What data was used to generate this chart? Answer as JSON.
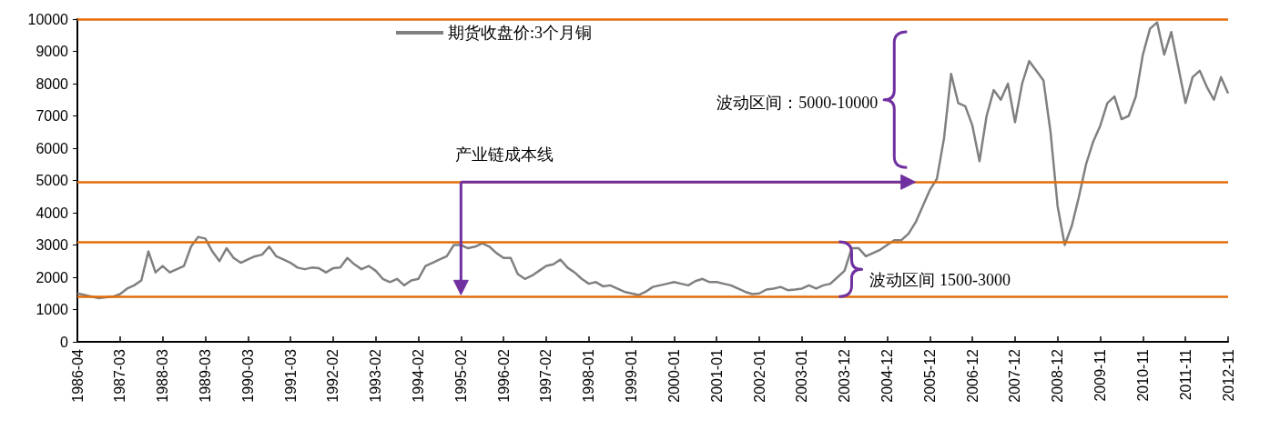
{
  "chart_data": {
    "type": "line",
    "categories": [
      "1986-04",
      null,
      null,
      null,
      null,
      null,
      "1987-03",
      null,
      null,
      null,
      null,
      null,
      "1988-03",
      null,
      null,
      null,
      null,
      null,
      "1989-03",
      null,
      null,
      null,
      null,
      null,
      "1990-03",
      null,
      null,
      null,
      null,
      null,
      "1991-03",
      null,
      null,
      null,
      null,
      null,
      "1992-02",
      null,
      null,
      null,
      null,
      null,
      "1993-02",
      null,
      null,
      null,
      null,
      null,
      "1994-02",
      null,
      null,
      null,
      null,
      null,
      "1995-02",
      null,
      null,
      null,
      null,
      null,
      "1996-02",
      null,
      null,
      null,
      null,
      null,
      "1997-02",
      null,
      null,
      null,
      null,
      null,
      "1998-01",
      null,
      null,
      null,
      null,
      null,
      "1999-01",
      null,
      null,
      null,
      null,
      null,
      "2000-01",
      null,
      null,
      null,
      null,
      null,
      "2001-01",
      null,
      null,
      null,
      null,
      null,
      "2002-01",
      null,
      null,
      null,
      null,
      null,
      "2003-01",
      null,
      null,
      null,
      null,
      null,
      "2003-12",
      null,
      null,
      null,
      null,
      null,
      "2004-12",
      null,
      null,
      null,
      null,
      null,
      "2005-12",
      null,
      null,
      null,
      null,
      null,
      "2006-12",
      null,
      null,
      null,
      null,
      null,
      "2007-12",
      null,
      null,
      null,
      null,
      null,
      "2008-12",
      null,
      null,
      null,
      null,
      null,
      "2009-11",
      null,
      null,
      null,
      null,
      null,
      "2010-11",
      null,
      null,
      null,
      null,
      null,
      "2011-11",
      null,
      null,
      null,
      null,
      null,
      "2012-11"
    ],
    "series": [
      {
        "name": "期货收盘价:3个月铜",
        "color": "#808080",
        "values": [
          1500,
          1450,
          1400,
          1350,
          1380,
          1400,
          1480,
          1650,
          1750,
          1900,
          2800,
          2150,
          2350,
          2150,
          2250,
          2350,
          2950,
          3250,
          3200,
          2800,
          2500,
          2900,
          2600,
          2450,
          2550,
          2650,
          2700,
          2950,
          2650,
          2550,
          2450,
          2300,
          2250,
          2300,
          2280,
          2150,
          2280,
          2300,
          2600,
          2400,
          2250,
          2350,
          2200,
          1950,
          1850,
          1950,
          1750,
          1900,
          1950,
          2350,
          2450,
          2550,
          2650,
          3000,
          3000,
          2900,
          2950,
          3050,
          2950,
          2750,
          2600,
          2600,
          2100,
          1950,
          2050,
          2200,
          2350,
          2400,
          2550,
          2300,
          2150,
          1950,
          1800,
          1850,
          1720,
          1750,
          1650,
          1550,
          1500,
          1450,
          1550,
          1700,
          1750,
          1800,
          1850,
          1800,
          1750,
          1880,
          1950,
          1850,
          1850,
          1800,
          1750,
          1650,
          1550,
          1480,
          1500,
          1620,
          1650,
          1700,
          1600,
          1620,
          1650,
          1750,
          1650,
          1750,
          1800,
          2000,
          2200,
          2900,
          2900,
          2650,
          2750,
          2850,
          3000,
          3150,
          3150,
          3350,
          3700,
          4200,
          4700,
          5050,
          6300,
          8300,
          7400,
          7300,
          6700,
          5600,
          7000,
          7800,
          7500,
          8000,
          6800,
          8000,
          8700,
          8400,
          8100,
          6500,
          4200,
          3000,
          3600,
          4500,
          5500,
          6200,
          6700,
          7400,
          7600,
          6900,
          7000,
          7600,
          8900,
          9700,
          9900,
          8900,
          9600,
          8500,
          7400,
          8200,
          8400,
          7900,
          7500,
          8200,
          7700
        ]
      }
    ],
    "ylim": [
      0,
      10000
    ],
    "yticks": [
      0,
      1000,
      2000,
      3000,
      4000,
      5000,
      6000,
      7000,
      8000,
      9000,
      10000
    ],
    "legend": "top",
    "marker": "none",
    "ref_lines": [
      {
        "axis": "y",
        "value": 1400,
        "color": "#e46c0a"
      },
      {
        "axis": "y",
        "value": 3100,
        "color": "#e46c0a"
      },
      {
        "axis": "y",
        "value": 4950,
        "color": "#e46c0a"
      },
      {
        "axis": "y",
        "value": 10000,
        "color": "#e46c0a"
      }
    ],
    "annotations": [
      {
        "text": "产业链成本线",
        "x": "1995-02",
        "y": 4950
      },
      "波动区间：5000-10000",
      "波动区间 1500-3000"
    ]
  }
}
